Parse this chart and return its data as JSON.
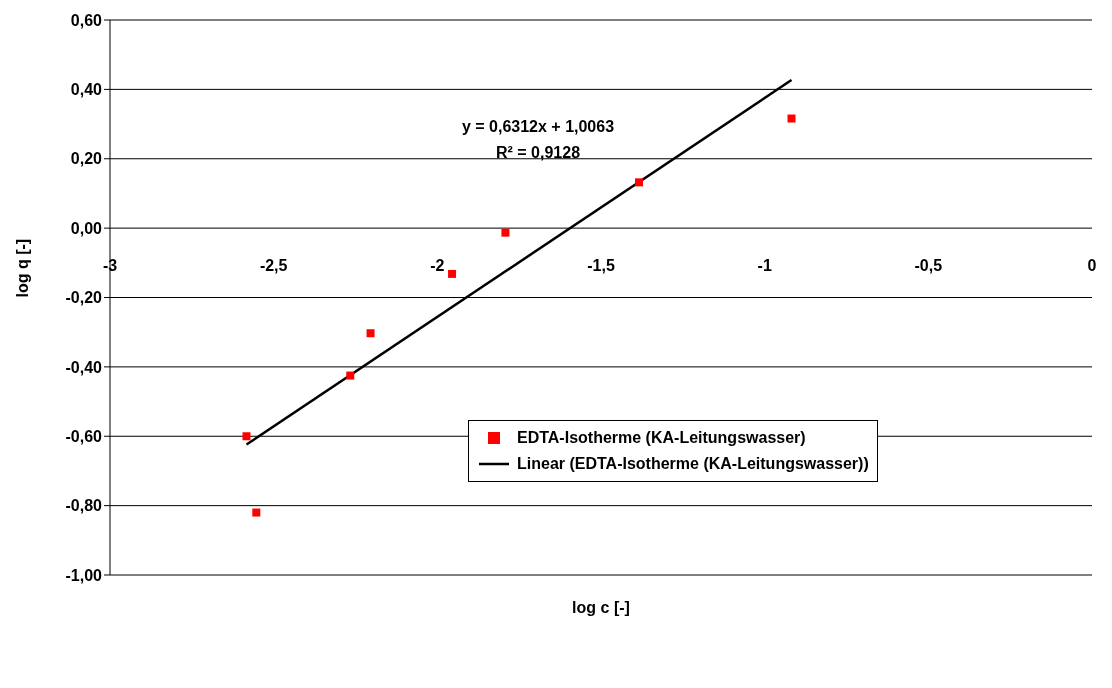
{
  "chart_data": {
    "type": "scatter",
    "xlabel": "log c [-]",
    "ylabel": "log q [-]",
    "xlim": [
      -3,
      0
    ],
    "xticks": [
      -3,
      {
        "value": -2.5,
        "label": "-2,5"
      },
      -2,
      {
        "value": -1.5,
        "label": "-1,5"
      },
      -1,
      {
        "value": -0.5,
        "label": "-0,5"
      },
      0
    ],
    "ylim": [
      -1,
      0.6
    ],
    "yticks": [
      {
        "value": -1,
        "label": "-1,00"
      },
      {
        "value": -0.8,
        "label": "-0,80"
      },
      {
        "value": -0.6,
        "label": "-0,60"
      },
      {
        "value": -0.4,
        "label": "-0,40"
      },
      {
        "value": -0.2,
        "label": "-0,20"
      },
      {
        "value": 0,
        "label": "0,00"
      },
      {
        "value": 0.2,
        "label": "0,20"
      },
      {
        "value": 0.4,
        "label": "0,40"
      },
      {
        "value": 0.6,
        "label": "0,60"
      }
    ],
    "grid": "y",
    "legend": "bottom right",
    "series": [
      {
        "name": "EDTA-Isotherme (KA-Leitungswasser)",
        "marker": "square",
        "color": "#ff0000",
        "x": [
          -2.583,
          -2.553,
          -2.266,
          -2.204,
          -1.955,
          -1.792,
          -1.384,
          -0.918
        ],
        "values": [
          -0.6,
          -0.82,
          -0.425,
          -0.303,
          -0.132,
          -0.013,
          0.132,
          0.316
        ]
      },
      {
        "name": "Linear (EDTA-Isotherme (KA-Leitungswasser))",
        "type": "line",
        "marker": "none",
        "color": "#000000",
        "x": [
          -2.583,
          -0.918
        ],
        "values": [
          -0.624,
          0.427
        ]
      }
    ],
    "annotations": [
      "y = 0,6312x + 1,0063",
      "R² = 0,9128"
    ]
  }
}
